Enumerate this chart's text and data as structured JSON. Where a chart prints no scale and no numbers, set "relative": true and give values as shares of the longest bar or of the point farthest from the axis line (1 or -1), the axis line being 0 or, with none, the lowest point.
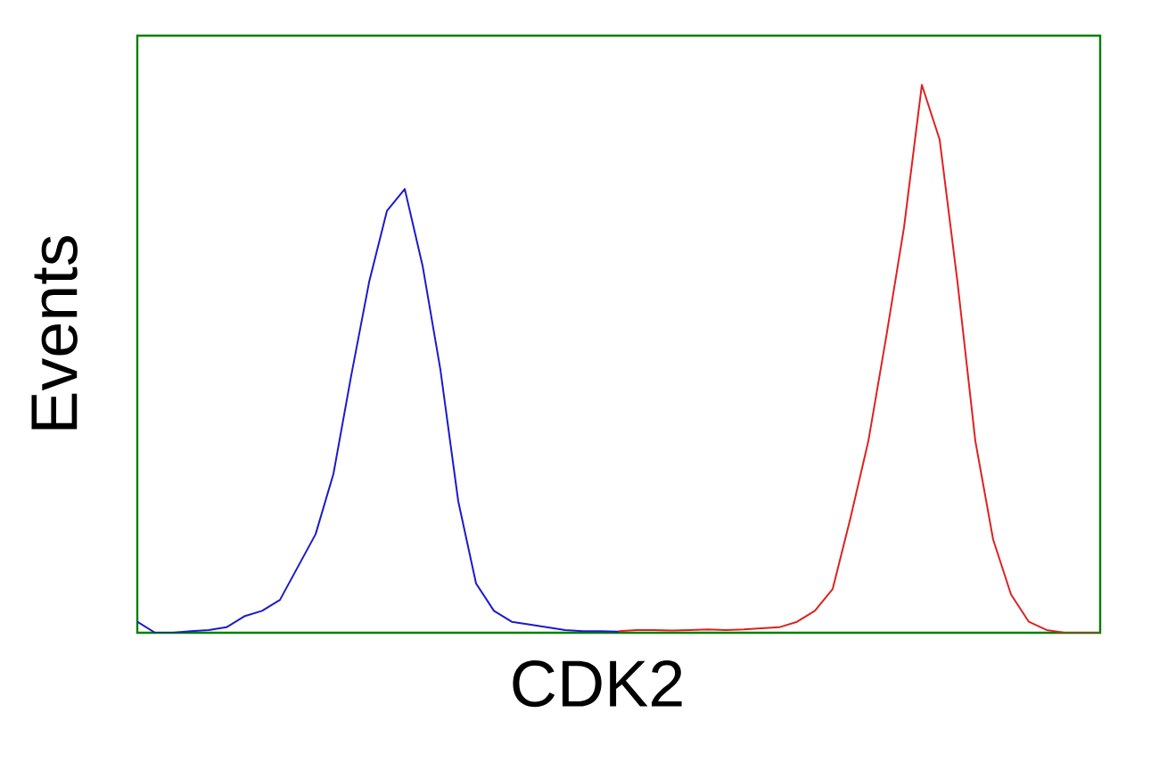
{
  "chart_data": {
    "type": "line",
    "relative": true,
    "xlabel": "CDK2",
    "ylabel": "Events",
    "marker": "none",
    "line_style": "solid",
    "categories": [
      null,
      null,
      null,
      null,
      null,
      null,
      null,
      null,
      null,
      null,
      null,
      null,
      null,
      null,
      null,
      null,
      null,
      null,
      null,
      null,
      null,
      null,
      null,
      null,
      null,
      null,
      null,
      null,
      null,
      null,
      null,
      null,
      null,
      null,
      null,
      null,
      null,
      null,
      null,
      null,
      null,
      null,
      null,
      null,
      null,
      null,
      null,
      null,
      null,
      null,
      null,
      null,
      null,
      null,
      null
    ],
    "series": [
      {
        "color": "#1a1acc",
        "values": [
          0.02,
          0,
          0,
          0.003,
          0.005,
          0.01,
          0.03,
          0.04,
          0.06,
          0.12,
          0.18,
          0.29,
          0.47,
          0.64,
          0.77,
          0.81,
          0.67,
          0.48,
          0.24,
          0.09,
          0.04,
          0.02,
          0.015,
          0.01,
          0.005,
          0.003,
          0.003,
          0.002,
          null,
          null,
          null,
          null,
          null,
          null,
          null,
          null,
          null,
          null,
          null,
          null,
          null,
          null,
          null,
          null,
          null,
          null,
          null,
          null,
          null,
          null,
          null,
          null,
          null,
          null,
          null
        ]
      },
      {
        "color": "#e02020",
        "values": [
          null,
          null,
          null,
          null,
          null,
          null,
          null,
          null,
          null,
          null,
          null,
          null,
          null,
          null,
          null,
          null,
          null,
          null,
          null,
          null,
          null,
          null,
          null,
          null,
          null,
          null,
          null,
          0.003,
          0.005,
          0.005,
          0.004,
          0.005,
          0.006,
          0.005,
          0.006,
          0.008,
          0.01,
          0.02,
          0.04,
          0.08,
          0.21,
          0.35,
          0.54,
          0.74,
          1.0,
          0.9,
          0.64,
          0.35,
          0.17,
          0.07,
          0.02,
          0.005,
          0,
          0,
          0
        ]
      }
    ]
  }
}
